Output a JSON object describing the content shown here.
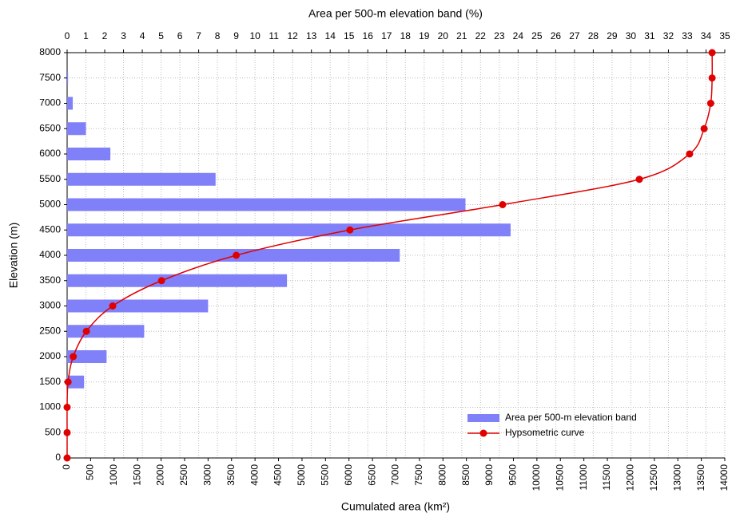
{
  "chart_data": {
    "type": "combo",
    "x2_label": "Area per 500-m elevation band (%)",
    "x_label": "Cumulated area (km²)",
    "y_label": "Elevation (m)",
    "xlim": [
      0,
      14000
    ],
    "xticks": [
      0,
      500,
      1000,
      1500,
      2000,
      2500,
      3000,
      3500,
      4000,
      4500,
      5000,
      5500,
      6000,
      6500,
      7000,
      7500,
      8000,
      8500,
      9000,
      9500,
      10000,
      10500,
      11000,
      11500,
      12000,
      12500,
      13000,
      13500,
      14000
    ],
    "x2lim": [
      0,
      35
    ],
    "x2ticks": [
      0,
      1,
      2,
      3,
      4,
      5,
      6,
      7,
      8,
      9,
      10,
      11,
      12,
      13,
      14,
      15,
      16,
      17,
      18,
      19,
      20,
      21,
      22,
      23,
      24,
      25,
      26,
      27,
      28,
      29,
      30,
      31,
      32,
      33,
      34,
      35
    ],
    "ylim": [
      0,
      8000
    ],
    "yticks": [
      0,
      500,
      1000,
      1500,
      2000,
      2500,
      3000,
      3500,
      4000,
      4500,
      5000,
      5500,
      6000,
      6500,
      7000,
      7500,
      8000
    ],
    "grid": true,
    "legend": "lower right",
    "series": [
      {
        "name": "Area per 500-m elevation band",
        "type": "bar",
        "axis": "x2",
        "color": "#8080f8",
        "y": [
          1500,
          2000,
          2500,
          3000,
          3500,
          4000,
          4500,
          5000,
          5500,
          6000,
          6500,
          7000,
          7500
        ],
        "values": [
          0.9,
          2.1,
          4.1,
          7.5,
          11.7,
          17.7,
          23.6,
          21.2,
          7.9,
          2.3,
          1.0,
          0.3,
          0.05
        ]
      },
      {
        "name": "Hypsometric curve",
        "type": "line",
        "axis": "x",
        "color": "#e00000",
        "y": [
          0,
          500,
          1000,
          1500,
          2000,
          2500,
          3000,
          3500,
          4000,
          4500,
          5000,
          5500,
          6000,
          6500,
          7000,
          7500,
          8000
        ],
        "values": [
          0,
          0,
          0,
          20,
          130,
          410,
          970,
          2010,
          3600,
          6020,
          9270,
          12180,
          13250,
          13560,
          13700,
          13730,
          13730
        ]
      }
    ]
  }
}
